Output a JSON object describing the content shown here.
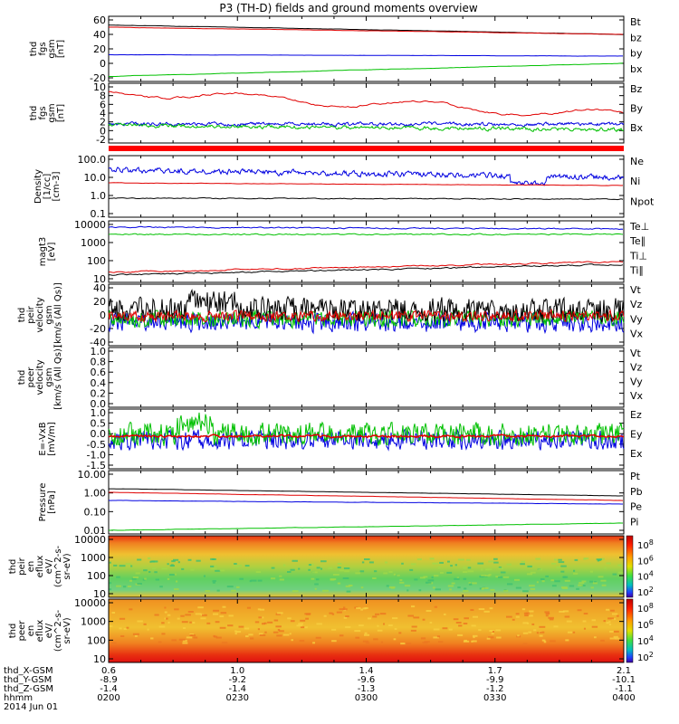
{
  "title": "P3 (TH-D) fields and ground moments overview",
  "panels": [
    {
      "id": "fgs",
      "ylabel": [
        "thd",
        "fgs",
        "gsm",
        "[nT]"
      ],
      "ticks": [
        "60",
        "40",
        "20",
        "0",
        "-20"
      ],
      "legend": [
        {
          "t": "Bt",
          "c": "#000000"
        },
        {
          "t": "bz",
          "c": "#e00000"
        },
        {
          "t": "by",
          "c": "#00c000"
        },
        {
          "t": "bx",
          "c": "#0000e0"
        }
      ]
    },
    {
      "id": "fgs2",
      "ylabel": [
        "thd",
        "fgs",
        "gsm",
        "[nT]"
      ],
      "ticks": [
        "10",
        "8",
        "6",
        "4",
        "2",
        "0",
        "-2"
      ],
      "legend": [
        {
          "t": "Bz",
          "c": "#e00000"
        },
        {
          "t": "By",
          "c": "#00c000"
        },
        {
          "t": "Bx",
          "c": "#0000e0"
        }
      ]
    },
    {
      "id": "density",
      "ylabel": [
        "Density",
        "[1/cc]",
        "[cm-3]"
      ],
      "ticks": [
        "100.0",
        "10.0",
        "1.0",
        "0.1"
      ],
      "legend": [
        {
          "t": "Ne",
          "c": "#e00000"
        },
        {
          "t": "Ni",
          "c": "#000000"
        },
        {
          "t": "Npot",
          "c": "#0000e0"
        }
      ]
    },
    {
      "id": "temp",
      "ylabel": [
        "magt3",
        "[eV]"
      ],
      "ticks": [
        "10000",
        "1000",
        "100",
        "10"
      ],
      "legend": [
        {
          "t": "Te⊥",
          "c": "#e00000"
        },
        {
          "t": "Te∥",
          "c": "#000000"
        },
        {
          "t": "Ti⊥",
          "c": "#00c000"
        },
        {
          "t": "Ti∥",
          "c": "#00c000"
        }
      ]
    },
    {
      "id": "peir",
      "ylabel": [
        "thd",
        "peir",
        "velocity",
        "gsm",
        "[km/s (All Qs)]"
      ],
      "ticks": [
        "40",
        "20",
        "0",
        "-20",
        "-40"
      ],
      "legend": [
        {
          "t": "Vt",
          "c": "#000000"
        },
        {
          "t": "Vz",
          "c": "#e00000"
        },
        {
          "t": "Vy",
          "c": "#00c000"
        },
        {
          "t": "Vx",
          "c": "#0000e0"
        }
      ]
    },
    {
      "id": "peer",
      "ylabel": [
        "thd",
        "peer",
        "velocity",
        "gsm",
        "[km/s (All Qs)]"
      ],
      "ticks": [
        "1.0",
        "0.8",
        "0.6",
        "0.4",
        "0.2",
        "0.0"
      ],
      "legend": [
        {
          "t": "Vt",
          "c": "#000000"
        },
        {
          "t": "Vz",
          "c": "#e00000"
        },
        {
          "t": "Vy",
          "c": "#00c000"
        },
        {
          "t": "Vx",
          "c": "#0000e0"
        }
      ]
    },
    {
      "id": "efield",
      "ylabel": [
        "E=-VxB",
        "[mV/m]"
      ],
      "ticks": [
        "1.0",
        "0.5",
        "0.0",
        "-0.5",
        "-1.0",
        "-1.5"
      ],
      "legend": [
        {
          "t": "Ez",
          "c": "#e00000"
        },
        {
          "t": "Ey",
          "c": "#00c000"
        },
        {
          "t": "Ex",
          "c": "#0000e0"
        }
      ]
    },
    {
      "id": "pressure",
      "ylabel": [
        "Pressure",
        "[nPa]"
      ],
      "ticks": [
        "10.00",
        "1.00",
        "0.10",
        "0.01"
      ],
      "legend": [
        {
          "t": "Pt",
          "c": "#000000"
        },
        {
          "t": "Pb",
          "c": "#e00000"
        },
        {
          "t": "Pe",
          "c": "#00c000"
        },
        {
          "t": "Pi",
          "c": "#0000e0"
        }
      ]
    },
    {
      "id": "peir_spec",
      "ylabel": [
        "thd",
        "peir",
        "en",
        "eflux",
        "eV/",
        "(cm^2-s-",
        "sr-eV)"
      ],
      "ticks": [
        "10000",
        "1000",
        "100",
        "10"
      ],
      "cbar": [
        "10^8",
        "10^6",
        "10^4",
        "10^2"
      ]
    },
    {
      "id": "peer_spec",
      "ylabel": [
        "thd",
        "peer",
        "en",
        "eflux",
        "eV/",
        "(cm^2-s-",
        "sr-eV)"
      ],
      "ticks": [
        "10000",
        "1000",
        "100",
        "10"
      ],
      "cbar": [
        "10^8",
        "10^6",
        "10^4",
        "10^2"
      ]
    }
  ],
  "bottom": {
    "labels": [
      "thd_X-GSM",
      "thd_Y-GSM",
      "thd_Z-GSM",
      "hhmm",
      "2014 Jun 01"
    ],
    "columns": [
      {
        "x": "0.6",
        "y": "-8.9",
        "z": "-1.4",
        "t": "0200"
      },
      {
        "x": "1.0",
        "y": "-9.2",
        "z": "-1.4",
        "t": "0230"
      },
      {
        "x": "1.4",
        "y": "-9.6",
        "z": "-1.3",
        "t": "0300"
      },
      {
        "x": "1.7",
        "y": "-9.9",
        "z": "-1.2",
        "t": "0330"
      },
      {
        "x": "2.1",
        "y": "-10.1",
        "z": "-1.1",
        "t": "0400"
      }
    ]
  },
  "chart_data": {
    "type": "line",
    "title": "P3 (TH-D) fields and ground moments overview",
    "x": [
      "0200",
      "0230",
      "0300",
      "0330",
      "0400"
    ],
    "series": [
      {
        "name": "Bt",
        "panel": "fgs",
        "values": [
          53,
          49,
          45,
          42,
          41
        ]
      },
      {
        "name": "bz",
        "panel": "fgs",
        "values": [
          50,
          46,
          43,
          41,
          40
        ]
      },
      {
        "name": "by",
        "panel": "fgs",
        "values": [
          -18,
          -13,
          -10,
          -6,
          -3
        ]
      },
      {
        "name": "bx",
        "panel": "fgs",
        "values": [
          14,
          13,
          12,
          11,
          10
        ]
      },
      {
        "name": "Ne",
        "panel": "density",
        "values": [
          5,
          5,
          5,
          4.5,
          4.5
        ]
      },
      {
        "name": "Ni",
        "panel": "density",
        "values": [
          0.9,
          0.9,
          0.9,
          0.9,
          0.9
        ]
      },
      {
        "name": "Npot",
        "panel": "density",
        "values": [
          22,
          24,
          20,
          10,
          16
        ]
      },
      {
        "name": "Te⊥",
        "panel": "temp",
        "values": [
          5000,
          4800,
          4500,
          4200,
          4500
        ]
      },
      {
        "name": "Ti⊥",
        "panel": "temp",
        "values": [
          2200,
          2200,
          2100,
          2000,
          2100
        ]
      },
      {
        "name": "Te∥",
        "panel": "temp",
        "values": [
          30,
          40,
          55,
          70,
          80
        ]
      },
      {
        "name": "Pt",
        "panel": "pressure",
        "values": [
          1.4,
          1.2,
          1.05,
          0.95,
          0.9
        ]
      },
      {
        "name": "Pb",
        "panel": "pressure",
        "values": [
          1.0,
          0.8,
          0.65,
          0.6,
          0.6
        ]
      },
      {
        "name": "Pe",
        "panel": "pressure",
        "values": [
          0.015,
          0.015,
          0.02,
          0.025,
          0.03
        ]
      },
      {
        "name": "Pi",
        "panel": "pressure",
        "values": [
          0.5,
          0.45,
          0.4,
          0.4,
          0.38
        ]
      }
    ],
    "colors": {
      "black": "#000000",
      "red": "#e00000",
      "green": "#00c000",
      "blue": "#0000e0"
    }
  }
}
